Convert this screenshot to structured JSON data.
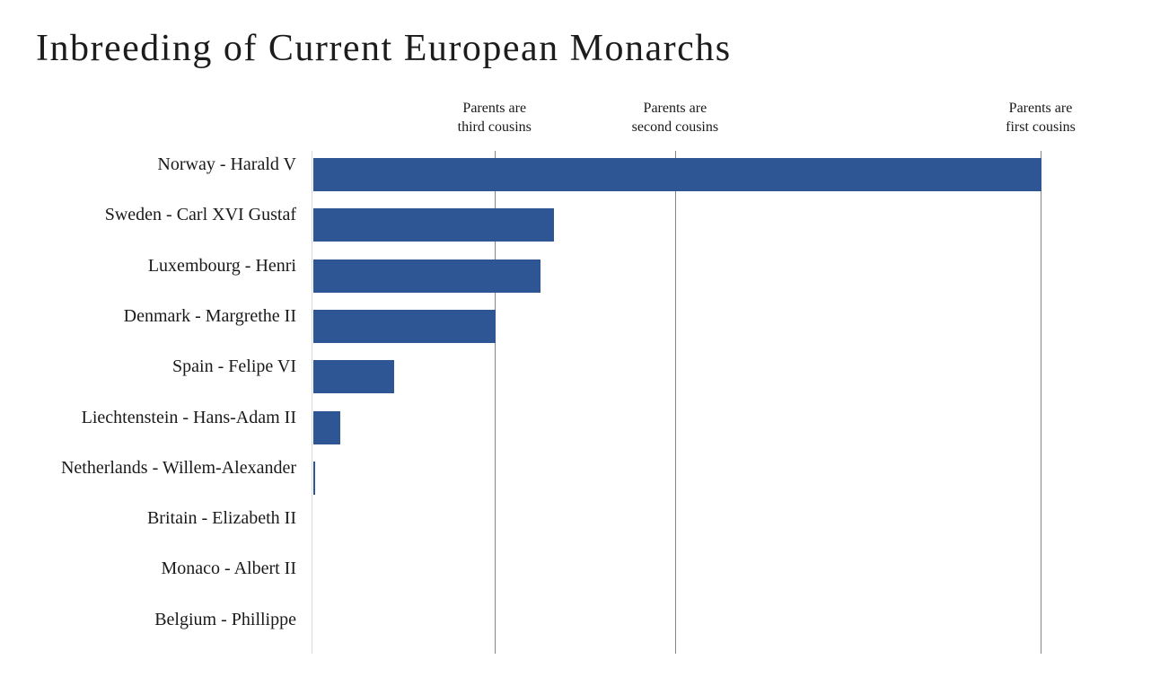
{
  "title": "Inbreeding of Current European Monarchs",
  "colors": {
    "bar": "#2e5694",
    "reference_line": "#848484",
    "axis_line": "#d9d9d9",
    "text": "#1a1a1a",
    "background": "#ffffff"
  },
  "chart_data": {
    "type": "bar",
    "orientation": "horizontal",
    "title": "Inbreeding of Current European Monarchs",
    "categories": [
      "Norway - Harald V",
      "Sweden - Carl XVI Gustaf",
      "Luxembourg - Henri",
      "Denmark - Margrethe II",
      "Spain - Felipe VI",
      "Liechtenstein - Hans-Adam II",
      "Netherlands - Willem-Alexander",
      "Britain - Elizabeth II",
      "Monaco - Albert II",
      "Belgium - Phillippe"
    ],
    "values_fraction_of_first_cousins_line": [
      1.0,
      0.33,
      0.312,
      0.25,
      0.111,
      0.037,
      0.002,
      0,
      0,
      0
    ],
    "reference_lines": [
      {
        "label_line1": "Parents are",
        "label_line2": "third cousins",
        "fraction": 0.25
      },
      {
        "label_line1": "Parents are",
        "label_line2": "second cousins",
        "fraction": 0.498
      },
      {
        "label_line1": "Parents are",
        "label_line2": "first cousins",
        "fraction": 1.0
      }
    ],
    "x_axis": {
      "numeric_ticks_shown": false,
      "range_fraction": [
        0,
        1.12
      ],
      "gridlines": true
    },
    "legend": "none",
    "data_labels_shown": false
  }
}
